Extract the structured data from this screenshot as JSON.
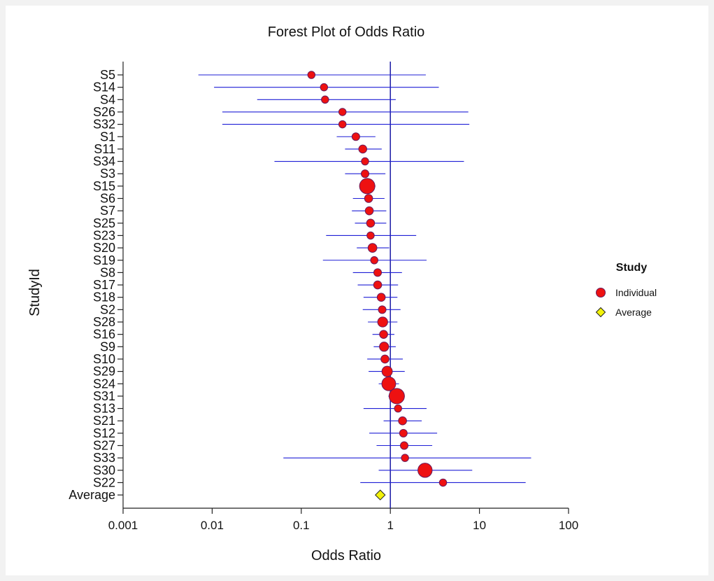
{
  "chart_data": {
    "type": "forest",
    "title": "Forest Plot of Odds Ratio",
    "xlabel": "Odds Ratio",
    "ylabel": "StudyId",
    "x_scale": "log",
    "xlim": [
      0.001,
      100
    ],
    "x_ticks": [
      "0.001",
      "0.01",
      "0.1",
      "1",
      "10",
      "100"
    ],
    "reference_line": 1,
    "legend": {
      "title": "Study",
      "placement": "right",
      "entries": [
        {
          "name": "Individual",
          "marker": "circle",
          "color": "#ee1111"
        },
        {
          "name": "Average",
          "marker": "diamond",
          "color": "#f2f20a"
        }
      ]
    },
    "studies": [
      {
        "id": "S5",
        "or": 0.13,
        "lo": 0.007,
        "hi": 2.5,
        "weight": 0.5
      },
      {
        "id": "S14",
        "or": 0.18,
        "lo": 0.0105,
        "hi": 3.5,
        "weight": 0.5
      },
      {
        "id": "S4",
        "or": 0.185,
        "lo": 0.032,
        "hi": 1.15,
        "weight": 0.5
      },
      {
        "id": "S26",
        "or": 0.29,
        "lo": 0.013,
        "hi": 7.5,
        "weight": 0.5
      },
      {
        "id": "S32",
        "or": 0.29,
        "lo": 0.013,
        "hi": 7.7,
        "weight": 0.5
      },
      {
        "id": "S1",
        "or": 0.41,
        "lo": 0.25,
        "hi": 0.68,
        "weight": 0.55
      },
      {
        "id": "S11",
        "or": 0.49,
        "lo": 0.31,
        "hi": 0.8,
        "weight": 0.6
      },
      {
        "id": "S34",
        "or": 0.52,
        "lo": 0.05,
        "hi": 6.7,
        "weight": 0.5
      },
      {
        "id": "S3",
        "or": 0.52,
        "lo": 0.31,
        "hi": 0.88,
        "weight": 0.55
      },
      {
        "id": "S15",
        "or": 0.55,
        "lo": 0.45,
        "hi": 0.68,
        "weight": 1.6
      },
      {
        "id": "S6",
        "or": 0.57,
        "lo": 0.38,
        "hi": 0.86,
        "weight": 0.6
      },
      {
        "id": "S7",
        "or": 0.58,
        "lo": 0.37,
        "hi": 0.9,
        "weight": 0.6
      },
      {
        "id": "S25",
        "or": 0.6,
        "lo": 0.4,
        "hi": 0.9,
        "weight": 0.6
      },
      {
        "id": "S23",
        "or": 0.6,
        "lo": 0.19,
        "hi": 1.95,
        "weight": 0.5
      },
      {
        "id": "S20",
        "or": 0.63,
        "lo": 0.42,
        "hi": 0.97,
        "weight": 0.7
      },
      {
        "id": "S19",
        "or": 0.66,
        "lo": 0.175,
        "hi": 2.55,
        "weight": 0.5
      },
      {
        "id": "S8",
        "or": 0.72,
        "lo": 0.38,
        "hi": 1.35,
        "weight": 0.55
      },
      {
        "id": "S17",
        "or": 0.72,
        "lo": 0.43,
        "hi": 1.22,
        "weight": 0.6
      },
      {
        "id": "S18",
        "or": 0.79,
        "lo": 0.5,
        "hi": 1.2,
        "weight": 0.6
      },
      {
        "id": "S2",
        "or": 0.81,
        "lo": 0.49,
        "hi": 1.3,
        "weight": 0.55
      },
      {
        "id": "S28",
        "or": 0.82,
        "lo": 0.56,
        "hi": 1.2,
        "weight": 0.85
      },
      {
        "id": "S16",
        "or": 0.84,
        "lo": 0.63,
        "hi": 1.11,
        "weight": 0.6
      },
      {
        "id": "S9",
        "or": 0.85,
        "lo": 0.65,
        "hi": 1.15,
        "weight": 0.75
      },
      {
        "id": "S10",
        "or": 0.87,
        "lo": 0.55,
        "hi": 1.38,
        "weight": 0.6
      },
      {
        "id": "S29",
        "or": 0.92,
        "lo": 0.57,
        "hi": 1.45,
        "weight": 0.9
      },
      {
        "id": "S24",
        "or": 0.96,
        "lo": 0.74,
        "hi": 1.25,
        "weight": 1.35
      },
      {
        "id": "S31",
        "or": 1.18,
        "lo": 0.95,
        "hi": 1.45,
        "weight": 1.55
      },
      {
        "id": "S13",
        "or": 1.22,
        "lo": 0.5,
        "hi": 2.55,
        "weight": 0.5
      },
      {
        "id": "S21",
        "or": 1.37,
        "lo": 0.84,
        "hi": 2.25,
        "weight": 0.6
      },
      {
        "id": "S12",
        "or": 1.4,
        "lo": 0.58,
        "hi": 3.35,
        "weight": 0.55
      },
      {
        "id": "S27",
        "or": 1.43,
        "lo": 0.7,
        "hi": 2.95,
        "weight": 0.55
      },
      {
        "id": "S33",
        "or": 1.46,
        "lo": 0.063,
        "hi": 38,
        "weight": 0.5
      },
      {
        "id": "S30",
        "or": 2.45,
        "lo": 0.74,
        "hi": 8.3,
        "weight": 1.4
      },
      {
        "id": "S22",
        "or": 3.9,
        "lo": 0.46,
        "hi": 33,
        "weight": 0.5
      }
    ],
    "average": {
      "id": "Average",
      "or": 0.77
    }
  }
}
